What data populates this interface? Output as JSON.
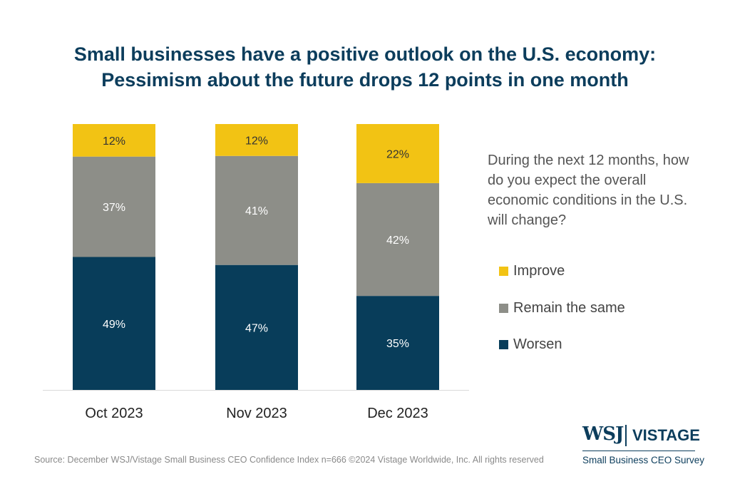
{
  "title_lines": [
    "Small businesses have a positive outlook on the U.S. economy:",
    "Pessimism about the future drops 12 points in one month"
  ],
  "question": "During the next 12 months, how do you expect the overall economic conditions in the U.S. will change?",
  "colors": {
    "improve": "#f2c314",
    "remain": "#8d8e88",
    "worsen": "#083d5a",
    "title": "#0c3d5c"
  },
  "chart_data": {
    "type": "bar",
    "stacked": true,
    "percent_stacked": true,
    "categories": [
      "Oct 2023",
      "Nov 2023",
      "Dec 2023"
    ],
    "series": [
      {
        "name": "Worsen",
        "values": [
          49,
          47,
          35
        ],
        "labels": [
          "49%",
          "47%",
          "35%"
        ]
      },
      {
        "name": "Remain the same",
        "values": [
          37,
          41,
          42
        ],
        "labels": [
          "37%",
          "41%",
          "42%"
        ]
      },
      {
        "name": "Improve",
        "values": [
          12,
          12,
          22
        ],
        "labels": [
          "12%",
          "12%",
          "22%"
        ]
      }
    ],
    "legend": {
      "position": "right",
      "order": [
        "Improve",
        "Remain the same",
        "Worsen"
      ]
    },
    "ylim": [
      0,
      100
    ],
    "grid": false
  },
  "source": "Source: December WSJ/Vistage Small Business CEO Confidence Index n=666 ©2024 Vistage Worldwide, Inc. All rights reserved",
  "logo": {
    "wsj": "WSJ",
    "vistage": "VISTAGE",
    "subtitle": "Small Business CEO Survey"
  }
}
